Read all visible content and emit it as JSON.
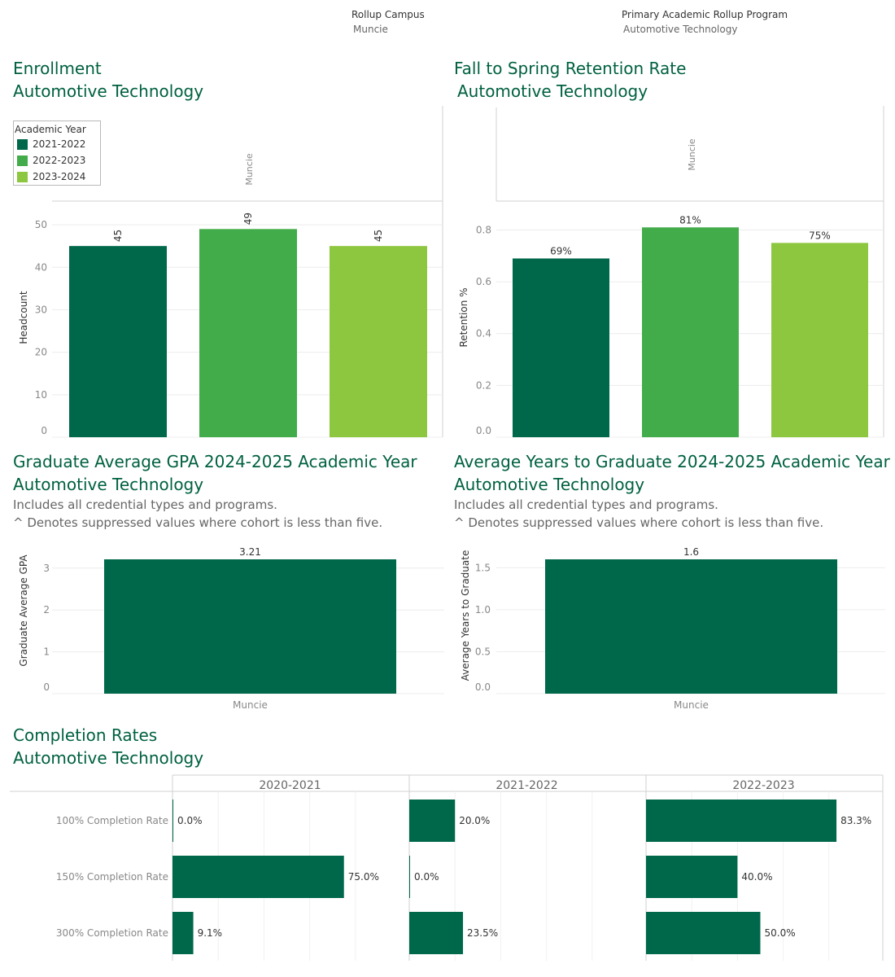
{
  "filters": {
    "campus": {
      "label": "Rollup Campus",
      "value": "Muncie"
    },
    "program": {
      "label": "Primary Academic Rollup Program",
      "value": "Automotive Technology"
    }
  },
  "colors": {
    "dark": "#00684a",
    "mid": "#43ac4a",
    "light": "#8dc63f",
    "title": "#00613f"
  },
  "enrollment": {
    "title": "Enrollment",
    "subtitle": "Automotive Technology",
    "legend_title": "Academic Year",
    "facet_label": "Muncie"
  },
  "retention": {
    "title": "Fall to Spring Retention Rate",
    "subtitle": "Automotive Technology",
    "facet_label": "Muncie"
  },
  "gpa": {
    "title": "Graduate Average GPA 2024-2025 Academic Year",
    "subtitle": "Automotive Technology",
    "note1": "Includes all credential types and programs.",
    "note2": "^ Denotes suppressed values where cohort is less than five."
  },
  "years": {
    "title": "Average Years to Graduate 2024-2025 Academic Year",
    "subtitle": "Automotive Technology",
    "note1": "Includes all credential types and programs.",
    "note2": "^ Denotes suppressed values where cohort is less than five."
  },
  "completion": {
    "title": "Completion Rates",
    "subtitle": "Automotive Technology"
  },
  "chart_data": [
    {
      "id": "enrollment",
      "type": "bar",
      "categories": [
        "2021-2022",
        "2022-2023",
        "2023-2024"
      ],
      "values": [
        45,
        49,
        45
      ],
      "labels": [
        "45",
        "49",
        "45"
      ],
      "ylabel": "Headcount",
      "ylim": [
        0,
        55
      ],
      "yticks": [
        0,
        10,
        20,
        30,
        40,
        50
      ],
      "legend": "top-left",
      "grid": true
    },
    {
      "id": "retention",
      "type": "bar",
      "categories": [
        "2021-2022",
        "2022-2023",
        "2023-2024"
      ],
      "values": [
        0.69,
        0.81,
        0.75
      ],
      "labels": [
        "69%",
        "81%",
        "75%"
      ],
      "ylabel": "Retention %",
      "ylim": [
        0,
        0.88
      ],
      "yticks": [
        "0.0",
        "0.2",
        "0.4",
        "0.6",
        "0.8"
      ],
      "grid": true
    },
    {
      "id": "gpa",
      "type": "bar",
      "categories": [
        "Muncie"
      ],
      "values": [
        3.21
      ],
      "labels": [
        "3.21"
      ],
      "ylabel": "Graduate Average GPA",
      "ylim": [
        0,
        3.21
      ],
      "yticks": [
        "0",
        "1",
        "2",
        "3"
      ],
      "grid": true
    },
    {
      "id": "years",
      "type": "bar",
      "categories": [
        "Muncie"
      ],
      "values": [
        1.6
      ],
      "labels": [
        "1.6"
      ],
      "ylabel": "Average Years to Graduate",
      "ylim": [
        0,
        1.6
      ],
      "yticks": [
        "0.0",
        "0.5",
        "1.0",
        "1.5"
      ],
      "grid": true
    },
    {
      "id": "completion",
      "type": "bar",
      "orientation": "horizontal",
      "facets": [
        "2020-2021",
        "2021-2022",
        "2022-2023"
      ],
      "categories": [
        "100% Completion Rate",
        "150% Completion Rate",
        "300% Completion Rate"
      ],
      "values": [
        [
          0.0,
          75.0,
          9.1
        ],
        [
          20.0,
          0.0,
          23.5
        ],
        [
          83.3,
          40.0,
          50.0
        ]
      ],
      "labels": [
        [
          "0.0%",
          "75.0%",
          "9.1%"
        ],
        [
          "20.0%",
          "0.0%",
          "23.5%"
        ],
        [
          "83.3%",
          "40.0%",
          "50.0%"
        ]
      ],
      "xlim": [
        0,
        100
      ],
      "grid": true
    }
  ]
}
